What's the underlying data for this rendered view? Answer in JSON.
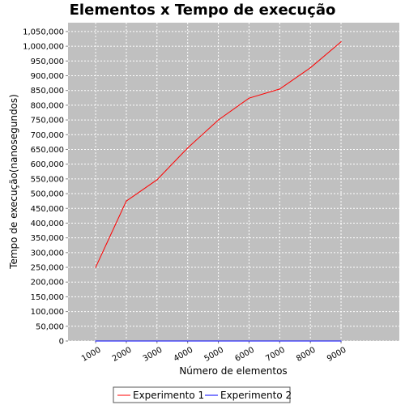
{
  "chart_data": {
    "type": "line",
    "title": "Elementos x Tempo de execução",
    "xlabel": "Número de elementos",
    "ylabel": "Tempo de execução(nanosegundos)",
    "x": [
      1000,
      2000,
      3000,
      4000,
      5000,
      6000,
      7000,
      8000,
      9000
    ],
    "x_tick_labels": [
      "1000",
      "2000",
      "3000",
      "4000",
      "5000",
      "6000",
      "7000",
      "8000",
      "9000"
    ],
    "xlim": [
      100,
      10900
    ],
    "ylim": [
      0,
      1080000
    ],
    "y_ticks": [
      0,
      50000,
      100000,
      150000,
      200000,
      250000,
      300000,
      350000,
      400000,
      450000,
      500000,
      550000,
      600000,
      650000,
      700000,
      750000,
      800000,
      850000,
      900000,
      950000,
      1000000,
      1050000
    ],
    "y_tick_labels": [
      "0",
      "50,000",
      "100,000",
      "150,000",
      "200,000",
      "250,000",
      "300,000",
      "350,000",
      "400,000",
      "450,000",
      "500,000",
      "550,000",
      "600,000",
      "650,000",
      "700,000",
      "750,000",
      "800,000",
      "850,000",
      "900,000",
      "950,000",
      "1,000,000",
      "1,050,000"
    ],
    "grid": true,
    "legend_position": "bottom",
    "plot_background": "#c0c0c0",
    "series": [
      {
        "name": "Experimento 1",
        "color": "#ff0000",
        "values": [
          250000,
          475000,
          547000,
          655000,
          750000,
          824000,
          855000,
          927000,
          1015000
        ]
      },
      {
        "name": "Experimento 2",
        "color": "#0000ff",
        "values": [
          0,
          0,
          0,
          0,
          0,
          0,
          0,
          0,
          0
        ]
      }
    ]
  }
}
